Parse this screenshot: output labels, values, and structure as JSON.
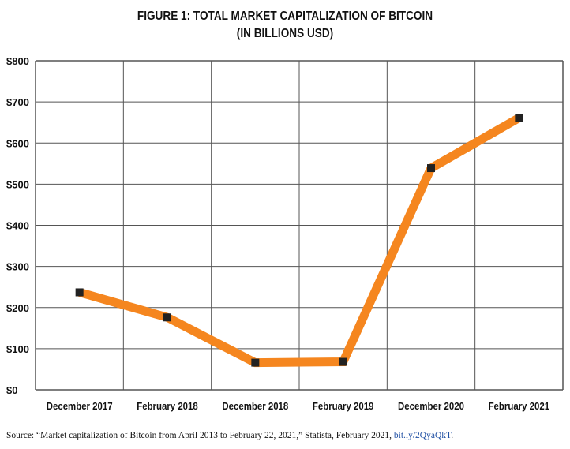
{
  "chart_data": {
    "type": "line",
    "title": "FIGURE 1: TOTAL MARKET CAPITALIZATION OF BITCOIN",
    "subtitle": "(IN BILLIONS USD)",
    "xlabel": "",
    "ylabel": "",
    "categories": [
      "December 2017",
      "February 2018",
      "December 2018",
      "February 2019",
      "December 2020",
      "February 2021"
    ],
    "values": [
      237,
      176,
      66,
      68,
      539,
      661
    ],
    "ylim": [
      0,
      800
    ],
    "yticks": [
      "$0",
      "$100",
      "$200",
      "$300",
      "$400",
      "$500",
      "$600",
      "$700",
      "$800"
    ],
    "grid": true,
    "line_color": "#f5861f",
    "marker_color": "#222222"
  },
  "source": {
    "text": "Source: “Market capitalization of Bitcoin from April 2013 to February 22, 2021,” Statista, February 2021, ",
    "link": "bit.ly/2QyaQkT",
    "end": "."
  }
}
